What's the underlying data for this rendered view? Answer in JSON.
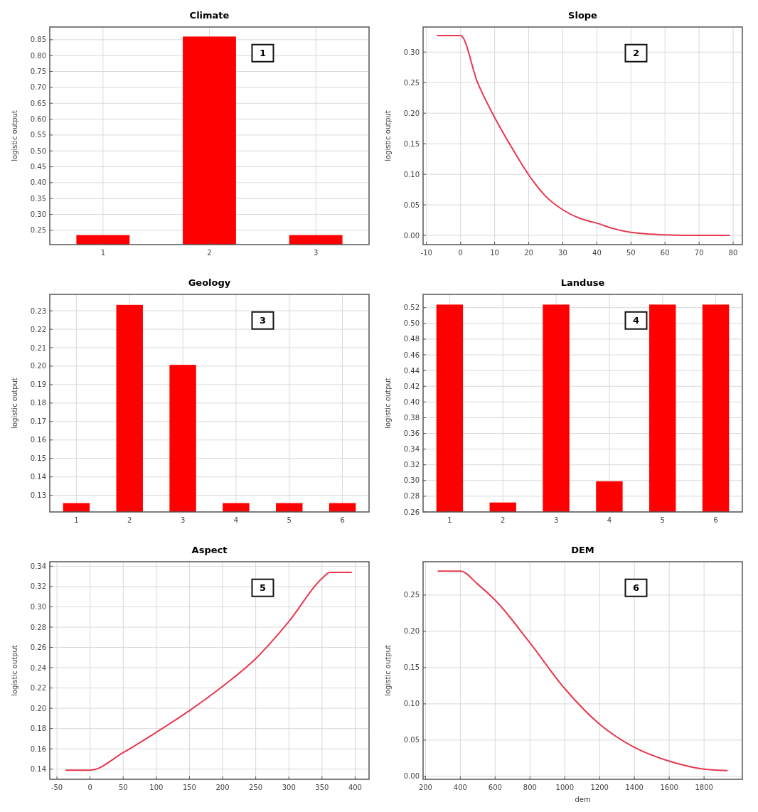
{
  "chart_data": [
    {
      "type": "bar",
      "title": "Climate",
      "ylabel": "logistic output",
      "categories": [
        "1",
        "2",
        "3"
      ],
      "values": [
        0.235,
        0.86,
        0.235
      ],
      "color": "#ff0000",
      "ylim": [
        0.205,
        0.89
      ],
      "yticks": [
        0.25,
        {
          "value": 0.3,
          "label": "0.30"
        },
        0.35,
        {
          "value": 0.4,
          "label": "0.40"
        },
        0.45,
        {
          "value": 0.5,
          "label": "0.50"
        },
        0.55,
        {
          "value": 0.6,
          "label": "0.60"
        },
        0.65,
        {
          "value": 0.7,
          "label": "0.70"
        },
        0.75,
        {
          "value": 0.8,
          "label": "0.80"
        },
        0.85
      ],
      "grid": true,
      "annotations": [
        "1"
      ]
    },
    {
      "type": "line",
      "title": "Slope",
      "ylabel": "logistic output",
      "x": [
        -7,
        0,
        5,
        10,
        15,
        20,
        25,
        30,
        35,
        40,
        45,
        50,
        60,
        70,
        79
      ],
      "values": [
        0.327,
        0.327,
        0.25,
        0.193,
        0.144,
        0.099,
        0.064,
        0.042,
        0.028,
        0.02,
        0.011,
        0.005,
        0.001,
        0.0,
        0.0
      ],
      "color": "#e8384f",
      "xlim": [
        -11,
        82.7
      ],
      "xticks": [
        -10,
        0,
        10,
        20,
        30,
        40,
        50,
        60,
        70,
        80
      ],
      "ylim": [
        -0.015,
        0.341
      ],
      "yticks": [
        {
          "value": 0,
          "label": "0.00"
        },
        0.05,
        {
          "value": 0.1,
          "label": "0.10"
        },
        0.15,
        {
          "value": 0.2,
          "label": "0.20"
        },
        0.25,
        {
          "value": 0.3,
          "label": "0.30"
        }
      ],
      "grid": true,
      "annotations": [
        "2"
      ]
    },
    {
      "type": "bar",
      "title": "Geology",
      "ylabel": "logistic output",
      "categories": [
        "1",
        "2",
        "3",
        "4",
        "5",
        "6"
      ],
      "values": [
        0.1258,
        0.2332,
        0.2007,
        0.1258,
        0.1258,
        0.1258
      ],
      "color": "#ff0000",
      "ylim": [
        0.121,
        0.2389
      ],
      "yticks": [
        0.13,
        0.14,
        0.15,
        0.16,
        0.17,
        0.18,
        0.19,
        {
          "value": 0.2,
          "label": "0.20"
        },
        0.21,
        0.22,
        0.23
      ],
      "grid": true,
      "annotations": [
        "3"
      ]
    },
    {
      "type": "bar",
      "title": "Landuse",
      "ylabel": "logistic output",
      "categories": [
        "1",
        "2",
        "3",
        "4",
        "5",
        "6"
      ],
      "values": [
        0.524,
        0.272,
        0.524,
        0.299,
        0.524,
        0.524
      ],
      "color": "#ff0000",
      "ylim": [
        0.26,
        0.537
      ],
      "yticks": [
        0.26,
        0.28,
        {
          "value": 0.3,
          "label": "0.30"
        },
        0.32,
        0.34,
        0.36,
        0.38,
        {
          "value": 0.4,
          "label": "0.40"
        },
        0.42,
        0.44,
        0.46,
        0.48,
        {
          "value": 0.5,
          "label": "0.50"
        },
        0.52
      ],
      "grid": true,
      "annotations": [
        "4"
      ]
    },
    {
      "type": "line",
      "title": "Aspect",
      "ylabel": "logistic output",
      "x": [
        -37,
        0,
        50,
        100,
        150,
        200,
        250,
        300,
        350,
        362,
        395
      ],
      "values": [
        0.139,
        0.139,
        0.1563,
        0.1764,
        0.1977,
        0.2216,
        0.249,
        0.2855,
        0.328,
        0.334,
        0.334
      ],
      "color": "#e8384f",
      "xlim": [
        -60.8,
        421
      ],
      "xticks": [
        -50,
        0,
        50,
        100,
        150,
        200,
        250,
        300,
        350,
        400
      ],
      "ylim": [
        0.13,
        0.3445
      ],
      "yticks": [
        0.14,
        0.16,
        0.18,
        {
          "value": 0.2,
          "label": "0.20"
        },
        0.22,
        0.24,
        0.26,
        0.28,
        {
          "value": 0.3,
          "label": "0.30"
        },
        0.32,
        0.34
      ],
      "grid": true,
      "annotations": [
        "5"
      ]
    },
    {
      "type": "line",
      "title": "DEM",
      "ylabel": "logistic output",
      "xlabel": "dem",
      "x": [
        270,
        400,
        500,
        600,
        800,
        1000,
        1200,
        1400,
        1600,
        1800,
        1935
      ],
      "values": [
        0.283,
        0.283,
        0.265,
        0.243,
        0.184,
        0.121,
        0.072,
        0.04,
        0.021,
        0.01,
        0.008
      ],
      "color": "#e8384f",
      "xlim": [
        186,
        2020
      ],
      "xticks": [
        200,
        400,
        600,
        800,
        1000,
        1200,
        1400,
        1600,
        1800
      ],
      "ylim": [
        -0.004,
        0.296
      ],
      "yticks": [
        {
          "value": 0,
          "label": "0.00"
        },
        0.05,
        {
          "value": 0.1,
          "label": "0.10"
        },
        0.15,
        {
          "value": 0.2,
          "label": "0.20"
        },
        0.25
      ],
      "grid": true,
      "annotations": [
        "6"
      ]
    }
  ]
}
